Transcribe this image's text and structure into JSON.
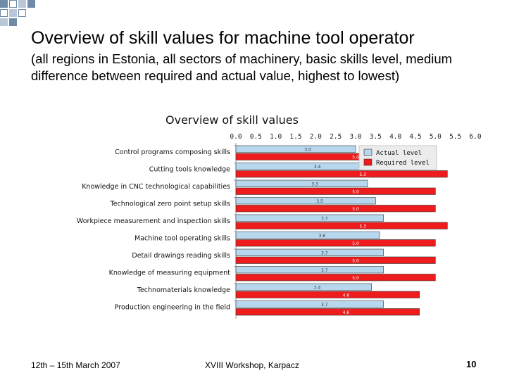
{
  "slide": {
    "title": "Overview of skill values for machine tool operator",
    "subtitle": "(all regions in Estonia, all sectors of machinery, basic skills level, medium difference between required and actual value, highest to lowest)"
  },
  "footer": {
    "date": "12th – 15th March 2007",
    "event": "XVIII Workshop, Karpacz",
    "page": "10"
  },
  "chart_data": {
    "type": "bar",
    "orientation": "horizontal",
    "title": "Overview of skill values",
    "xlim": [
      0,
      6
    ],
    "x_ticks": [
      "0.0",
      "0.5",
      "1.0",
      "1.5",
      "2.0",
      "2.5",
      "3.0",
      "3.5",
      "4.0",
      "4.5",
      "5.0",
      "5.5",
      "6.0"
    ],
    "categories": [
      "Control programs composing skills",
      "Cutting tools knowledge",
      "Knowledge in CNC technological capabilities",
      "Technological zero point setup skills",
      "Workpiece measurement and inspection skills",
      "Machine tool operating skills",
      "Detail drawings reading skills",
      "Knowledge of measuring equipment",
      "Technomaterials knowledge",
      "Production engineering in the field"
    ],
    "series": [
      {
        "name": "Actual level",
        "color": "#b7d7ee",
        "values": [
          3.0,
          3.4,
          3.3,
          3.5,
          3.7,
          3.6,
          3.7,
          3.7,
          3.4,
          3.7
        ],
        "labels": [
          "3.0",
          "3.4",
          "3.3",
          "3.5",
          "3.7",
          "3.6",
          "3.7",
          "3.7",
          "3.4",
          "3.7"
        ]
      },
      {
        "name": "Required level",
        "color": "#ee1c1c",
        "values": [
          5.0,
          5.3,
          5.0,
          5.0,
          5.3,
          5.0,
          5.0,
          5.0,
          4.6,
          4.6
        ],
        "labels": [
          "5.0",
          "5.3",
          "5.0",
          "5.0",
          "5.3",
          "5.0",
          "5.0",
          "5.0",
          "4.6",
          "4.6"
        ]
      }
    ],
    "legend_position": "top-right",
    "grid": false
  }
}
